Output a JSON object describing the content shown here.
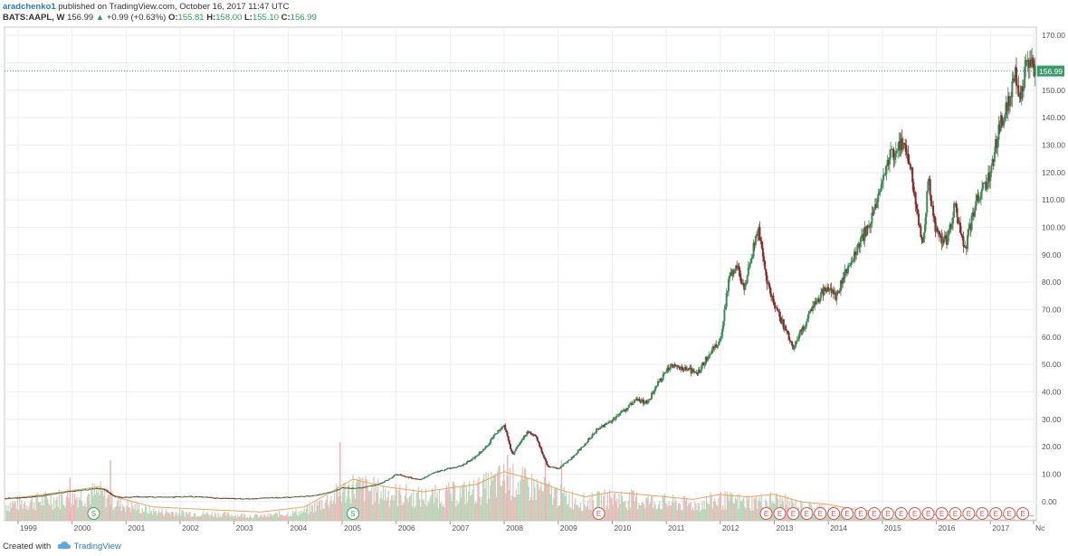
{
  "header": {
    "author": "aradchenko1",
    "published_text": "published on TradingView.com, October 16, 2017 11:47 UTC",
    "symbol": "BATS:AAPL, W",
    "last_price": "156.99",
    "change": "+0.99 (+0.63%)",
    "open_label": "O:",
    "open_value": "155.81",
    "high_label": "H:",
    "high_value": "158.00",
    "low_label": "L:",
    "low_value": "155.10",
    "close_label": "C:",
    "close_value": "156.99"
  },
  "footer": {
    "created_with": "Created with",
    "brand": "TradingView"
  },
  "colors": {
    "up": "#3a8e55",
    "down": "#8a2a2a",
    "vol_up": "#a9d6b0",
    "vol_down": "#e8b4b4",
    "ma": "#f0a060",
    "price_line": "#3a9a6a"
  },
  "chart_data": {
    "type": "candlestick",
    "title": "",
    "xlabel": "",
    "ylabel": "",
    "ylim": [
      -7,
      173
    ],
    "xlim": [
      1998.75,
      2017.85
    ],
    "grid": true,
    "y_ticks": [
      0,
      10,
      20,
      30,
      40,
      50,
      60,
      70,
      80,
      90,
      100,
      110,
      120,
      130,
      140,
      150,
      160,
      170
    ],
    "y_tick_labels": [
      "0.00",
      "10.00",
      "20.00",
      "30.00",
      "40.00",
      "50.00",
      "60.00",
      "70.00",
      "80.00",
      "90.00",
      "100.00",
      "110.00",
      "120.00",
      "130.00",
      "140.00",
      "150.00",
      "160.00",
      "170.00"
    ],
    "x_ticks": [
      1999,
      2000,
      2001,
      2002,
      2003,
      2004,
      2005,
      2006,
      2007,
      2008,
      2009,
      2010,
      2011,
      2012,
      2013,
      2014,
      2015,
      2016,
      2017,
      2017.8
    ],
    "x_tick_labels": [
      "1999",
      "2000",
      "2001",
      "2002",
      "2003",
      "2004",
      "2005",
      "2006",
      "2007",
      "2008",
      "2009",
      "2010",
      "2011",
      "2012",
      "2013",
      "2014",
      "2015",
      "2016",
      "2017",
      "Nc"
    ],
    "last_price_label": "156.99",
    "last_price": 156.99,
    "price_series": [
      [
        1998.75,
        1.2
      ],
      [
        1999.0,
        1.3
      ],
      [
        1999.3,
        1.8
      ],
      [
        1999.6,
        2.6
      ],
      [
        1999.9,
        3.6
      ],
      [
        2000.2,
        4.2
      ],
      [
        2000.45,
        4.8
      ],
      [
        2000.6,
        4.5
      ],
      [
        2000.75,
        2.2
      ],
      [
        2000.9,
        1.5
      ],
      [
        2001.2,
        1.8
      ],
      [
        2001.5,
        1.7
      ],
      [
        2001.8,
        1.6
      ],
      [
        2002.1,
        1.9
      ],
      [
        2002.4,
        1.7
      ],
      [
        2002.7,
        1.2
      ],
      [
        2002.95,
        1.1
      ],
      [
        2003.3,
        1.0
      ],
      [
        2003.6,
        1.4
      ],
      [
        2003.9,
        1.5
      ],
      [
        2004.2,
        1.8
      ],
      [
        2004.5,
        2.2
      ],
      [
        2004.8,
        3.5
      ],
      [
        2005.0,
        5.0
      ],
      [
        2005.2,
        4.8
      ],
      [
        2005.4,
        5.2
      ],
      [
        2005.7,
        6.5
      ],
      [
        2005.9,
        8.5
      ],
      [
        2006.0,
        10.0
      ],
      [
        2006.2,
        9.0
      ],
      [
        2006.45,
        8.0
      ],
      [
        2006.7,
        10.5
      ],
      [
        2006.95,
        12.0
      ],
      [
        2007.2,
        13.0
      ],
      [
        2007.45,
        16.0
      ],
      [
        2007.65,
        19.5
      ],
      [
        2007.85,
        25.0
      ],
      [
        2008.0,
        28.0
      ],
      [
        2008.15,
        17.0
      ],
      [
        2008.3,
        22.0
      ],
      [
        2008.45,
        25.5
      ],
      [
        2008.6,
        23.0
      ],
      [
        2008.8,
        13.0
      ],
      [
        2009.0,
        12.0
      ],
      [
        2009.2,
        15.0
      ],
      [
        2009.45,
        20.0
      ],
      [
        2009.7,
        26.0
      ],
      [
        2009.95,
        29.0
      ],
      [
        2010.2,
        33.0
      ],
      [
        2010.45,
        37.0
      ],
      [
        2010.65,
        36.0
      ],
      [
        2010.85,
        43.0
      ],
      [
        2011.1,
        50.0
      ],
      [
        2011.4,
        48.0
      ],
      [
        2011.6,
        47.0
      ],
      [
        2011.8,
        54.0
      ],
      [
        2012.0,
        59.0
      ],
      [
        2012.15,
        80.0
      ],
      [
        2012.3,
        86.0
      ],
      [
        2012.45,
        78.0
      ],
      [
        2012.7,
        100.0
      ],
      [
        2012.85,
        82.0
      ],
      [
        2013.0,
        72.0
      ],
      [
        2013.2,
        63.0
      ],
      [
        2013.35,
        56.0
      ],
      [
        2013.5,
        62.0
      ],
      [
        2013.7,
        70.0
      ],
      [
        2013.95,
        78.0
      ],
      [
        2014.15,
        75.0
      ],
      [
        2014.35,
        85.0
      ],
      [
        2014.6,
        95.0
      ],
      [
        2014.85,
        105.0
      ],
      [
        2015.0,
        118.0
      ],
      [
        2015.15,
        126.0
      ],
      [
        2015.35,
        130.0
      ],
      [
        2015.5,
        125.0
      ],
      [
        2015.65,
        104.0
      ],
      [
        2015.75,
        93.0
      ],
      [
        2015.85,
        117.0
      ],
      [
        2016.0,
        98.0
      ],
      [
        2016.2,
        94.0
      ],
      [
        2016.35,
        110.0
      ],
      [
        2016.45,
        97.0
      ],
      [
        2016.55,
        93.0
      ],
      [
        2016.7,
        107.0
      ],
      [
        2016.85,
        115.0
      ],
      [
        2017.0,
        118.0
      ],
      [
        2017.15,
        136.0
      ],
      [
        2017.3,
        143.0
      ],
      [
        2017.45,
        156.0
      ],
      [
        2017.55,
        146.0
      ],
      [
        2017.65,
        158.0
      ],
      [
        2017.72,
        162.0
      ],
      [
        2017.8,
        156.99
      ]
    ],
    "volume_profile": [
      [
        1998.75,
        7
      ],
      [
        1999.5,
        9
      ],
      [
        2000.5,
        12
      ],
      [
        2000.8,
        8
      ],
      [
        2001.5,
        4
      ],
      [
        2002.5,
        3
      ],
      [
        2003.5,
        2
      ],
      [
        2004.3,
        4
      ],
      [
        2004.8,
        10
      ],
      [
        2005.2,
        15
      ],
      [
        2005.8,
        12
      ],
      [
        2006.5,
        10
      ],
      [
        2007.5,
        13
      ],
      [
        2008.0,
        18
      ],
      [
        2008.5,
        15
      ],
      [
        2009.0,
        11
      ],
      [
        2009.5,
        8
      ],
      [
        2010.0,
        10
      ],
      [
        2010.5,
        9
      ],
      [
        2011.0,
        8
      ],
      [
        2011.5,
        7
      ],
      [
        2012.0,
        9
      ],
      [
        2012.5,
        8
      ],
      [
        2013.0,
        9
      ],
      [
        2013.5,
        6
      ],
      [
        2014.0,
        5
      ],
      [
        2014.5,
        3
      ],
      [
        2015.0,
        2
      ],
      [
        2015.5,
        1.5
      ],
      [
        2016.0,
        1
      ],
      [
        2016.5,
        0.5
      ],
      [
        2017.0,
        0.5
      ],
      [
        2017.8,
        0.5
      ]
    ],
    "volume_spikes": [
      [
        2000.7,
        24
      ],
      [
        2004.95,
        31
      ],
      [
        2008.05,
        26
      ],
      [
        2008.75,
        25
      ],
      [
        2009.05,
        24
      ],
      [
        1999.95,
        17
      ]
    ],
    "events": [
      {
        "x": 2000.4,
        "label": "S",
        "kind": "split"
      },
      {
        "x": 2005.2,
        "label": "S",
        "kind": "split"
      },
      {
        "x": 2009.75,
        "label": "E",
        "kind": "earnings"
      },
      {
        "x": 2012.85,
        "label": "E",
        "kind": "earnings"
      },
      {
        "x": 2013.1,
        "label": "E",
        "kind": "earnings"
      },
      {
        "x": 2013.35,
        "label": "E",
        "kind": "earnings"
      },
      {
        "x": 2013.6,
        "label": "E",
        "kind": "earnings"
      },
      {
        "x": 2013.85,
        "label": "E",
        "kind": "earnings"
      },
      {
        "x": 2014.1,
        "label": "E",
        "kind": "earnings"
      },
      {
        "x": 2014.35,
        "label": "E",
        "kind": "earnings"
      },
      {
        "x": 2014.6,
        "label": "E",
        "kind": "earnings"
      },
      {
        "x": 2014.85,
        "label": "E",
        "kind": "earnings"
      },
      {
        "x": 2015.1,
        "label": "E",
        "kind": "earnings"
      },
      {
        "x": 2015.35,
        "label": "E",
        "kind": "earnings"
      },
      {
        "x": 2015.6,
        "label": "E",
        "kind": "earnings"
      },
      {
        "x": 2015.85,
        "label": "E",
        "kind": "earnings"
      },
      {
        "x": 2016.1,
        "label": "E",
        "kind": "earnings"
      },
      {
        "x": 2016.35,
        "label": "E",
        "kind": "earnings"
      },
      {
        "x": 2016.6,
        "label": "E",
        "kind": "earnings"
      },
      {
        "x": 2016.85,
        "label": "E",
        "kind": "earnings"
      },
      {
        "x": 2017.1,
        "label": "E",
        "kind": "earnings"
      },
      {
        "x": 2017.35,
        "label": "E",
        "kind": "earnings"
      },
      {
        "x": 2017.6,
        "label": "E",
        "kind": "earnings"
      }
    ]
  }
}
